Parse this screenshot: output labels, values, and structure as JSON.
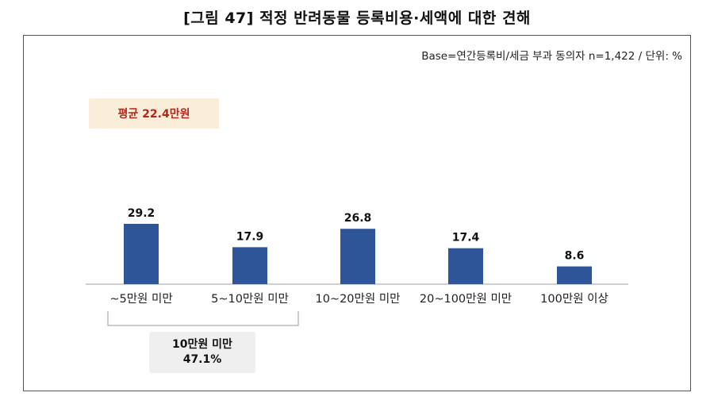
{
  "figure_title": "[그림 47] 적정 반려동물 등록비용·세액에 대한 견해",
  "base_note": "Base=연간등록비/세금 부과 동의자 n=1,422 / 단위: %",
  "average_badge": "평균 22.4만원",
  "group_badge": {
    "label": "10만원 미만",
    "value": "47.1%"
  },
  "colors": {
    "bar": "#2e5597",
    "badge_bg": "#fbeed9",
    "badge_text": "#b2261d",
    "group_bg": "#efefef"
  },
  "chart_data": {
    "type": "bar",
    "categories": [
      "~5만원 미만",
      "5~10만원 미만",
      "10~20만원 미만",
      "20~100만원 미만",
      "100만원 이상"
    ],
    "values": [
      29.2,
      17.9,
      26.8,
      17.4,
      8.6
    ],
    "value_labels": [
      "29.2",
      "17.9",
      "26.8",
      "17.4",
      "8.6"
    ],
    "title": "",
    "xlabel": "",
    "ylabel": "",
    "ylim": [
      0,
      29.2
    ],
    "grid": false,
    "legend": "none",
    "annotations": [
      "평균 22.4만원",
      "10만원 미만 47.1%"
    ]
  }
}
